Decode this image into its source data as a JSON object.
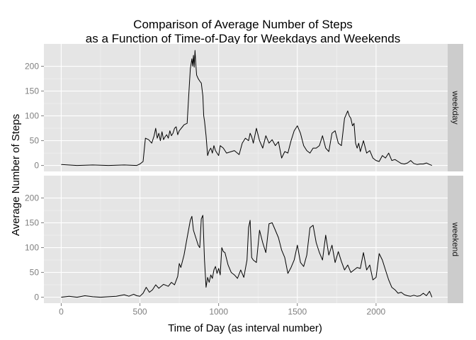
{
  "chart_data": {
    "type": "line",
    "title": [
      "Comparison of Average Number of Steps",
      "as a Function of Time-of-Day for Weekdays and Weekends"
    ],
    "xlabel": "Time of Day (as interval number)",
    "ylabel": "Average Number of Steps",
    "xlim": [
      -110,
      2455
    ],
    "ylim": [
      -12,
      245
    ],
    "x_ticks": [
      0,
      500,
      1000,
      1500,
      2000
    ],
    "y_ticks": [
      0,
      50,
      100,
      150,
      200
    ],
    "grid": true,
    "facet": "rows",
    "colors": {
      "panel": "#e5e5e5",
      "strip": "#cccccc",
      "line": "#000000",
      "grid_major": "#ffffff",
      "grid_minor": "#f2f2f2",
      "tick_label": "#7f7f7f"
    },
    "series": [
      {
        "name": "weekday",
        "x": [
          0,
          100,
          200,
          300,
          400,
          480,
          500,
          520,
          535,
          555,
          575,
          590,
          600,
          610,
          620,
          630,
          640,
          650,
          660,
          670,
          680,
          690,
          700,
          710,
          720,
          730,
          740,
          750,
          760,
          770,
          780,
          800,
          810,
          820,
          830,
          835,
          840,
          845,
          850,
          855,
          860,
          870,
          880,
          890,
          900,
          905,
          910,
          920,
          930,
          940,
          950,
          960,
          970,
          980,
          990,
          1000,
          1010,
          1030,
          1050,
          1100,
          1130,
          1150,
          1170,
          1190,
          1200,
          1210,
          1220,
          1240,
          1260,
          1280,
          1300,
          1320,
          1340,
          1360,
          1380,
          1400,
          1420,
          1440,
          1460,
          1480,
          1500,
          1520,
          1540,
          1560,
          1580,
          1600,
          1620,
          1640,
          1660,
          1680,
          1700,
          1720,
          1740,
          1760,
          1780,
          1800,
          1820,
          1830,
          1840,
          1850,
          1860,
          1870,
          1880,
          1890,
          1900,
          1920,
          1940,
          1960,
          1980,
          2000,
          2020,
          2040,
          2060,
          2080,
          2100,
          2120,
          2140,
          2160,
          2180,
          2200,
          2220,
          2240,
          2260,
          2280,
          2300,
          2320,
          2340,
          2355
        ],
        "values": [
          2,
          0,
          1,
          0,
          1,
          0,
          3,
          8,
          55,
          52,
          45,
          60,
          75,
          55,
          65,
          50,
          68,
          52,
          58,
          62,
          55,
          70,
          60,
          65,
          75,
          78,
          62,
          70,
          74,
          78,
          82,
          85,
          140,
          195,
          215,
          200,
          222,
          198,
          232,
          205,
          182,
          175,
          170,
          166,
          140,
          100,
          90,
          60,
          20,
          30,
          35,
          25,
          40,
          30,
          25,
          20,
          40,
          35,
          25,
          30,
          22,
          45,
          55,
          50,
          65,
          58,
          45,
          75,
          50,
          35,
          60,
          45,
          52,
          40,
          48,
          15,
          28,
          25,
          50,
          70,
          80,
          65,
          40,
          30,
          25,
          35,
          35,
          40,
          60,
          35,
          28,
          65,
          70,
          45,
          40,
          95,
          110,
          100,
          95,
          80,
          85,
          45,
          35,
          45,
          28,
          50,
          25,
          30,
          15,
          10,
          8,
          20,
          15,
          25,
          10,
          12,
          8,
          4,
          3,
          5,
          10,
          4,
          2,
          3,
          3,
          5,
          2,
          0
        ],
        "points_note": ""
      },
      {
        "name": "weekend",
        "x": [
          0,
          50,
          100,
          150,
          200,
          250,
          300,
          350,
          400,
          430,
          460,
          480,
          500,
          520,
          540,
          560,
          580,
          600,
          620,
          650,
          680,
          700,
          720,
          740,
          750,
          760,
          780,
          800,
          820,
          830,
          840,
          850,
          860,
          870,
          880,
          890,
          900,
          910,
          920,
          930,
          940,
          950,
          960,
          970,
          980,
          990,
          1000,
          1010,
          1020,
          1030,
          1040,
          1060,
          1080,
          1100,
          1120,
          1140,
          1160,
          1180,
          1190,
          1200,
          1210,
          1220,
          1240,
          1260,
          1280,
          1300,
          1320,
          1340,
          1360,
          1380,
          1400,
          1420,
          1440,
          1460,
          1480,
          1500,
          1520,
          1540,
          1560,
          1580,
          1600,
          1620,
          1640,
          1660,
          1680,
          1700,
          1720,
          1740,
          1760,
          1780,
          1800,
          1820,
          1840,
          1860,
          1880,
          1900,
          1920,
          1940,
          1960,
          1980,
          2000,
          2020,
          2040,
          2060,
          2080,
          2100,
          2120,
          2140,
          2160,
          2180,
          2200,
          2220,
          2240,
          2260,
          2280,
          2300,
          2320,
          2340,
          2355
        ],
        "values": [
          0,
          2,
          0,
          3,
          1,
          0,
          1,
          2,
          5,
          2,
          6,
          3,
          2,
          8,
          20,
          10,
          15,
          25,
          18,
          26,
          22,
          30,
          25,
          42,
          68,
          60,
          85,
          120,
          155,
          163,
          135,
          125,
          115,
          105,
          100,
          158,
          165,
          75,
          20,
          40,
          30,
          45,
          38,
          55,
          62,
          48,
          58,
          45,
          100,
          92,
          90,
          65,
          50,
          45,
          38,
          55,
          40,
          75,
          140,
          155,
          80,
          75,
          70,
          135,
          110,
          90,
          148,
          150,
          135,
          120,
          95,
          80,
          48,
          60,
          75,
          105,
          70,
          62,
          85,
          140,
          145,
          110,
          90,
          75,
          125,
          85,
          105,
          70,
          92,
          72,
          55,
          65,
          50,
          55,
          60,
          58,
          90,
          55,
          65,
          35,
          40,
          88,
          75,
          55,
          35,
          20,
          15,
          8,
          10,
          5,
          3,
          2,
          4,
          2,
          3,
          8,
          3,
          12,
          0
        ]
      }
    ]
  }
}
